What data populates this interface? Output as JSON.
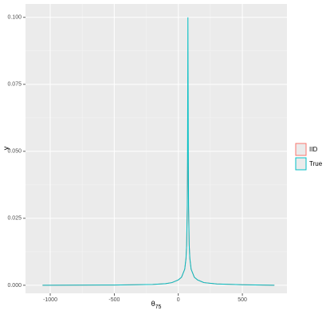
{
  "chart_data": {
    "type": "line",
    "x_label": "θ",
    "x_label_subscript": "75",
    "y_label": "y",
    "x": [
      -1060,
      -500,
      -200,
      -100,
      -50,
      0,
      25,
      50,
      60,
      65,
      70,
      72,
      74,
      75,
      76,
      78,
      80,
      85,
      90,
      100,
      125,
      150,
      200,
      300,
      500,
      750
    ],
    "series": [
      {
        "name": "IID",
        "color": "#f8766d",
        "values": [
          0,
          0.0001,
          0.0003,
          0.0006,
          0.001,
          0.002,
          0.003,
          0.006,
          0.01,
          0.015,
          0.028,
          0.04,
          0.05,
          0.052,
          0.05,
          0.04,
          0.028,
          0.015,
          0.01,
          0.006,
          0.003,
          0.002,
          0.001,
          0.0005,
          0.0002,
          0
        ]
      },
      {
        "name": "True",
        "color": "#00bfc4",
        "values": [
          0,
          0.0001,
          0.0003,
          0.0006,
          0.001,
          0.002,
          0.003,
          0.006,
          0.01,
          0.015,
          0.03,
          0.05,
          0.08,
          0.1,
          0.08,
          0.05,
          0.03,
          0.015,
          0.01,
          0.006,
          0.003,
          0.002,
          0.001,
          0.0005,
          0.0002,
          0
        ]
      }
    ],
    "xlim": [
      -1193,
      848
    ],
    "ylim": [
      -0.003,
      0.105
    ],
    "xticks": [
      -1000,
      -500,
      0,
      500
    ],
    "yticks": [
      {
        "value": 0,
        "label": "0.000"
      },
      {
        "value": 0.025,
        "label": "0.025"
      },
      {
        "value": 0.05,
        "label": "0.050"
      },
      {
        "value": 0.075,
        "label": "0.075"
      },
      {
        "value": 0.1,
        "label": "0.100"
      }
    ],
    "grid": true,
    "legend": "right"
  }
}
